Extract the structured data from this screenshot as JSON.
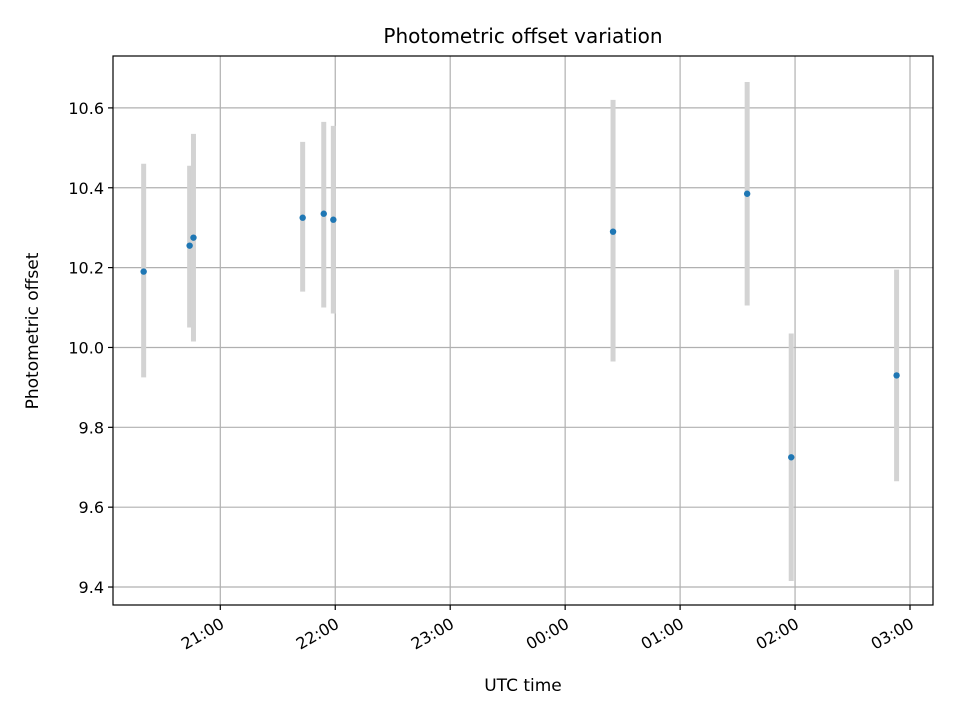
{
  "chart_data": {
    "type": "scatter",
    "title": "Photometric offset variation",
    "xlabel": "UTC time",
    "ylabel": "Photometric offset",
    "x_ticks": [
      "21:00",
      "22:00",
      "23:00",
      "00:00",
      "01:00",
      "02:00",
      "03:00"
    ],
    "y_ticks": [
      "9.4",
      "9.6",
      "9.8",
      "10.0",
      "10.2",
      "10.4",
      "10.6"
    ],
    "ylim": [
      9.355,
      10.73
    ],
    "xlim": [
      "20:04",
      "03:12"
    ],
    "grid": true,
    "marker_color": "#1f77b4",
    "errorbar_color": "#d3d3d3",
    "points": [
      {
        "time": "20:20",
        "y": 10.19,
        "y_low": 9.925,
        "y_high": 10.46
      },
      {
        "time": "20:44",
        "y": 10.255,
        "y_low": 10.05,
        "y_high": 10.455
      },
      {
        "time": "20:46",
        "y": 10.275,
        "y_low": 10.015,
        "y_high": 10.535
      },
      {
        "time": "21:43",
        "y": 10.325,
        "y_low": 10.14,
        "y_high": 10.515
      },
      {
        "time": "21:54",
        "y": 10.335,
        "y_low": 10.1,
        "y_high": 10.565
      },
      {
        "time": "21:59",
        "y": 10.32,
        "y_low": 10.085,
        "y_high": 10.555
      },
      {
        "time": "00:25",
        "y": 10.29,
        "y_low": 9.965,
        "y_high": 10.62
      },
      {
        "time": "01:35",
        "y": 10.385,
        "y_low": 10.105,
        "y_high": 10.665
      },
      {
        "time": "01:58",
        "y": 9.725,
        "y_low": 9.415,
        "y_high": 10.035
      },
      {
        "time": "02:53",
        "y": 9.93,
        "y_low": 9.665,
        "y_high": 10.195
      }
    ]
  }
}
